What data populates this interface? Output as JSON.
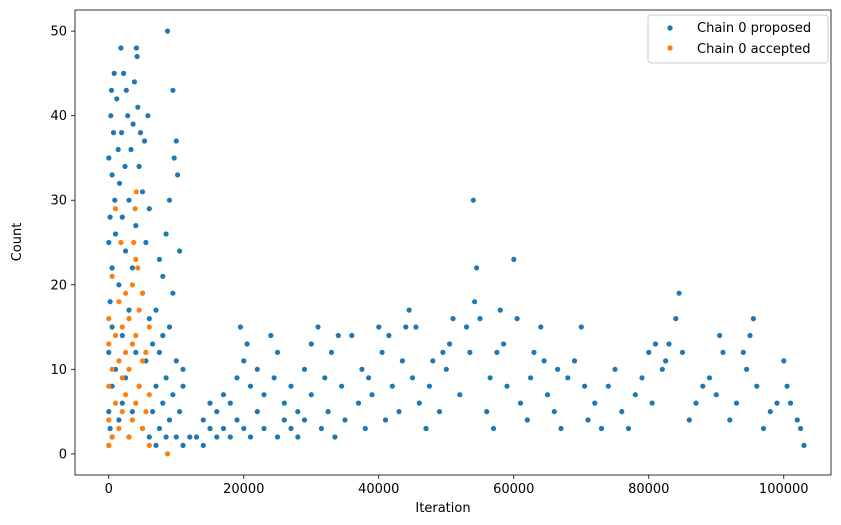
{
  "chart_data": {
    "type": "scatter",
    "xlabel": "Iteration",
    "ylabel": "Count",
    "xlim": [
      -5000,
      107000
    ],
    "ylim": [
      -2.5,
      52.5
    ],
    "x_ticks": [
      0,
      20000,
      40000,
      60000,
      80000,
      100000
    ],
    "y_ticks": [
      0,
      10,
      20,
      30,
      40,
      50
    ],
    "x_tick_labels": [
      "0",
      "20000",
      "40000",
      "60000",
      "80000",
      "100000"
    ],
    "y_tick_labels": [
      "0",
      "10",
      "20",
      "30",
      "40",
      "50"
    ],
    "legend_position": "top-right",
    "series": [
      {
        "name": "Chain 0 proposed",
        "color": "#1f77b4",
        "points": [
          [
            0,
            1
          ],
          [
            0,
            5
          ],
          [
            0,
            12
          ],
          [
            0,
            25
          ],
          [
            0,
            35
          ],
          [
            200,
            3
          ],
          [
            200,
            18
          ],
          [
            200,
            28
          ],
          [
            300,
            40
          ],
          [
            400,
            43
          ],
          [
            500,
            2
          ],
          [
            500,
            8
          ],
          [
            500,
            15
          ],
          [
            500,
            22
          ],
          [
            500,
            33
          ],
          [
            700,
            38
          ],
          [
            800,
            45
          ],
          [
            900,
            30
          ],
          [
            1000,
            10
          ],
          [
            1000,
            26
          ],
          [
            1200,
            42
          ],
          [
            1400,
            36
          ],
          [
            1500,
            4
          ],
          [
            1500,
            20
          ],
          [
            1600,
            32
          ],
          [
            1800,
            48
          ],
          [
            1900,
            38
          ],
          [
            2000,
            6
          ],
          [
            2000,
            14
          ],
          [
            2000,
            28
          ],
          [
            2200,
            45
          ],
          [
            2400,
            34
          ],
          [
            2500,
            9
          ],
          [
            2500,
            24
          ],
          [
            2600,
            43
          ],
          [
            2800,
            40
          ],
          [
            3000,
            2
          ],
          [
            3000,
            17
          ],
          [
            3000,
            30
          ],
          [
            3300,
            36
          ],
          [
            3500,
            5
          ],
          [
            3500,
            22
          ],
          [
            3600,
            39
          ],
          [
            3800,
            44
          ],
          [
            4000,
            12
          ],
          [
            4000,
            27
          ],
          [
            4100,
            48
          ],
          [
            4200,
            47
          ],
          [
            4300,
            41
          ],
          [
            4500,
            8
          ],
          [
            4500,
            34
          ],
          [
            4700,
            38
          ],
          [
            5000,
            3
          ],
          [
            5000,
            19
          ],
          [
            5000,
            31
          ],
          [
            5300,
            37
          ],
          [
            5500,
            11
          ],
          [
            5500,
            25
          ],
          [
            5800,
            40
          ],
          [
            6000,
            2
          ],
          [
            6000,
            16
          ],
          [
            6000,
            29
          ],
          [
            6500,
            5
          ],
          [
            6500,
            13
          ],
          [
            7000,
            1
          ],
          [
            7000,
            8
          ],
          [
            7000,
            17
          ],
          [
            7500,
            3
          ],
          [
            7500,
            12
          ],
          [
            7500,
            23
          ],
          [
            8000,
            6
          ],
          [
            8000,
            14
          ],
          [
            8000,
            21
          ],
          [
            8500,
            2
          ],
          [
            8500,
            9
          ],
          [
            8500,
            26
          ],
          [
            8700,
            50
          ],
          [
            9000,
            4
          ],
          [
            9000,
            15
          ],
          [
            9000,
            30
          ],
          [
            9500,
            7
          ],
          [
            9500,
            19
          ],
          [
            9500,
            43
          ],
          [
            9700,
            35
          ],
          [
            10000,
            2
          ],
          [
            10000,
            11
          ],
          [
            10000,
            37
          ],
          [
            10200,
            33
          ],
          [
            10500,
            5
          ],
          [
            10500,
            24
          ],
          [
            11000,
            1
          ],
          [
            11000,
            8
          ],
          [
            11000,
            10
          ],
          [
            12000,
            2
          ],
          [
            13000,
            2
          ],
          [
            14000,
            1
          ],
          [
            14000,
            4
          ],
          [
            15000,
            3
          ],
          [
            15000,
            6
          ],
          [
            16000,
            2
          ],
          [
            16000,
            5
          ],
          [
            17000,
            3
          ],
          [
            17000,
            7
          ],
          [
            18000,
            2
          ],
          [
            18000,
            6
          ],
          [
            19000,
            4
          ],
          [
            19000,
            9
          ],
          [
            19500,
            15
          ],
          [
            20000,
            3
          ],
          [
            20000,
            11
          ],
          [
            20500,
            13
          ],
          [
            21000,
            2
          ],
          [
            21000,
            8
          ],
          [
            22000,
            5
          ],
          [
            22000,
            10
          ],
          [
            23000,
            3
          ],
          [
            23000,
            7
          ],
          [
            24000,
            14
          ],
          [
            24500,
            9
          ],
          [
            25000,
            2
          ],
          [
            25000,
            12
          ],
          [
            26000,
            4
          ],
          [
            26000,
            6
          ],
          [
            27000,
            3
          ],
          [
            27000,
            8
          ],
          [
            28000,
            2
          ],
          [
            28000,
            5
          ],
          [
            29000,
            4
          ],
          [
            29000,
            10
          ],
          [
            30000,
            7
          ],
          [
            30000,
            13
          ],
          [
            31000,
            15
          ],
          [
            31500,
            3
          ],
          [
            32000,
            9
          ],
          [
            32500,
            5
          ],
          [
            33000,
            12
          ],
          [
            33500,
            2
          ],
          [
            34000,
            14
          ],
          [
            34500,
            8
          ],
          [
            35000,
            4
          ],
          [
            36000,
            14
          ],
          [
            37000,
            6
          ],
          [
            37500,
            10
          ],
          [
            38000,
            3
          ],
          [
            38500,
            9
          ],
          [
            39000,
            7
          ],
          [
            40000,
            15
          ],
          [
            40500,
            12
          ],
          [
            41000,
            4
          ],
          [
            41500,
            14
          ],
          [
            42000,
            8
          ],
          [
            43000,
            5
          ],
          [
            43500,
            11
          ],
          [
            44000,
            15
          ],
          [
            44500,
            17
          ],
          [
            45000,
            9
          ],
          [
            45500,
            15
          ],
          [
            46000,
            6
          ],
          [
            47000,
            3
          ],
          [
            47500,
            8
          ],
          [
            48000,
            11
          ],
          [
            49000,
            5
          ],
          [
            49500,
            12
          ],
          [
            50000,
            10
          ],
          [
            50500,
            13
          ],
          [
            51000,
            16
          ],
          [
            52000,
            7
          ],
          [
            53000,
            15
          ],
          [
            53500,
            12
          ],
          [
            54000,
            30
          ],
          [
            54200,
            18
          ],
          [
            54500,
            22
          ],
          [
            55000,
            16
          ],
          [
            56000,
            5
          ],
          [
            56500,
            9
          ],
          [
            57000,
            3
          ],
          [
            57500,
            12
          ],
          [
            58000,
            17
          ],
          [
            58500,
            13
          ],
          [
            59000,
            8
          ],
          [
            60000,
            23
          ],
          [
            60500,
            16
          ],
          [
            61000,
            6
          ],
          [
            62000,
            4
          ],
          [
            62500,
            9
          ],
          [
            63000,
            12
          ],
          [
            64000,
            15
          ],
          [
            64500,
            11
          ],
          [
            65000,
            7
          ],
          [
            66000,
            5
          ],
          [
            66500,
            10
          ],
          [
            67000,
            3
          ],
          [
            68000,
            9
          ],
          [
            69000,
            11
          ],
          [
            70000,
            15
          ],
          [
            70500,
            8
          ],
          [
            71000,
            4
          ],
          [
            72000,
            6
          ],
          [
            73000,
            3
          ],
          [
            74000,
            8
          ],
          [
            75000,
            10
          ],
          [
            76000,
            5
          ],
          [
            77000,
            3
          ],
          [
            78000,
            7
          ],
          [
            79000,
            9
          ],
          [
            80000,
            12
          ],
          [
            80500,
            6
          ],
          [
            81000,
            13
          ],
          [
            82000,
            10
          ],
          [
            82500,
            11
          ],
          [
            83000,
            13
          ],
          [
            84000,
            16
          ],
          [
            84500,
            19
          ],
          [
            85000,
            12
          ],
          [
            86000,
            4
          ],
          [
            87000,
            6
          ],
          [
            88000,
            8
          ],
          [
            89000,
            9
          ],
          [
            90000,
            7
          ],
          [
            90500,
            14
          ],
          [
            91000,
            12
          ],
          [
            92000,
            4
          ],
          [
            93000,
            6
          ],
          [
            94000,
            12
          ],
          [
            94500,
            10
          ],
          [
            95000,
            14
          ],
          [
            95500,
            16
          ],
          [
            96000,
            8
          ],
          [
            97000,
            3
          ],
          [
            98000,
            5
          ],
          [
            99000,
            6
          ],
          [
            100000,
            11
          ],
          [
            100500,
            8
          ],
          [
            101000,
            6
          ],
          [
            102000,
            4
          ],
          [
            102500,
            3
          ],
          [
            103000,
            1
          ]
        ]
      },
      {
        "name": "Chain 0 accepted",
        "color": "#ff7f0e",
        "points": [
          [
            0,
            1
          ],
          [
            0,
            4
          ],
          [
            0,
            8
          ],
          [
            0,
            13
          ],
          [
            0,
            16
          ],
          [
            500,
            2
          ],
          [
            500,
            10
          ],
          [
            500,
            21
          ],
          [
            1000,
            6
          ],
          [
            1000,
            14
          ],
          [
            1000,
            29
          ],
          [
            1500,
            3
          ],
          [
            1500,
            11
          ],
          [
            1500,
            18
          ],
          [
            1800,
            25
          ],
          [
            2000,
            5
          ],
          [
            2000,
            9
          ],
          [
            2000,
            15
          ],
          [
            2500,
            7
          ],
          [
            2500,
            12
          ],
          [
            2500,
            19
          ],
          [
            3000,
            2
          ],
          [
            3000,
            10
          ],
          [
            3000,
            16
          ],
          [
            3500,
            4
          ],
          [
            3500,
            13
          ],
          [
            3500,
            20
          ],
          [
            3700,
            25
          ],
          [
            3900,
            29
          ],
          [
            4000,
            6
          ],
          [
            4000,
            14
          ],
          [
            4000,
            23
          ],
          [
            4100,
            31
          ],
          [
            4300,
            22
          ],
          [
            4500,
            8
          ],
          [
            4500,
            17
          ],
          [
            5000,
            3
          ],
          [
            5000,
            11
          ],
          [
            5000,
            19
          ],
          [
            5500,
            5
          ],
          [
            5500,
            12
          ],
          [
            6000,
            1
          ],
          [
            6000,
            7
          ],
          [
            6000,
            15
          ],
          [
            8700,
            0
          ]
        ]
      }
    ]
  }
}
